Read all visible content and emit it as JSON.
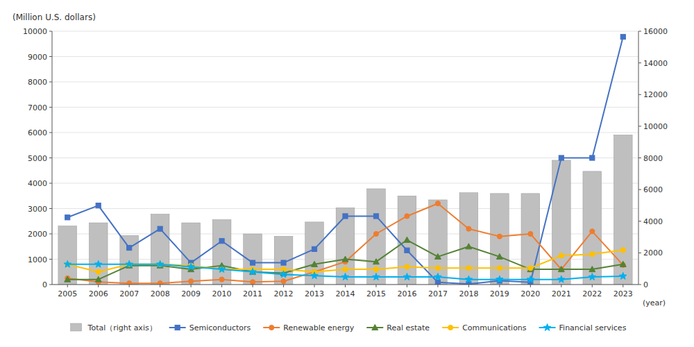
{
  "chart_data": {
    "type": "bar",
    "ylabel": "(Million U.S. dollars)",
    "xlabel": "(year)",
    "categories": [
      "2005",
      "2006",
      "2007",
      "2008",
      "2009",
      "2010",
      "2011",
      "2012",
      "2013",
      "2014",
      "2015",
      "2016",
      "2017",
      "2018",
      "2019",
      "2020",
      "2021",
      "2022",
      "2023"
    ],
    "series": [
      {
        "name": "Total（right axis）",
        "type": "bar",
        "axis": "y2",
        "color": "#bfbfbf",
        "values": [
          3700,
          3900,
          3100,
          4450,
          3900,
          4100,
          3200,
          3050,
          3950,
          4850,
          6050,
          5600,
          5350,
          5800,
          5750,
          5750,
          7850,
          7150,
          9450
        ]
      },
      {
        "name": "Semiconductors",
        "type": "line",
        "color": "#4472c4",
        "marker": "square",
        "values": [
          2650,
          3120,
          1450,
          2200,
          860,
          1720,
          860,
          860,
          1400,
          2700,
          2700,
          1350,
          87,
          19,
          150,
          87,
          5000,
          5000,
          9780
        ]
      },
      {
        "name": "Renewable energy",
        "type": "line",
        "color": "#ed7d31",
        "marker": "circle",
        "values": [
          250,
          100,
          50,
          50,
          130,
          200,
          100,
          130,
          500,
          900,
          2000,
          2700,
          3200,
          2200,
          1900,
          2000,
          600,
          2100,
          770
        ]
      },
      {
        "name": "Real estate",
        "type": "line",
        "color": "#548235",
        "marker": "triangle",
        "values": [
          200,
          200,
          750,
          750,
          600,
          750,
          500,
          450,
          800,
          1000,
          900,
          1760,
          1100,
          1500,
          1100,
          600,
          600,
          600,
          800
        ]
      },
      {
        "name": "Communications",
        "type": "line",
        "color": "#ffc000",
        "marker": "circle",
        "values": [
          800,
          500,
          800,
          800,
          750,
          600,
          600,
          600,
          500,
          600,
          600,
          700,
          650,
          650,
          650,
          650,
          1140,
          1200,
          1360
        ]
      },
      {
        "name": "Financial services",
        "type": "line",
        "color": "#00b0f0",
        "marker": "star",
        "values": [
          800,
          800,
          800,
          800,
          700,
          600,
          500,
          400,
          350,
          300,
          300,
          300,
          300,
          200,
          200,
          200,
          200,
          300,
          330
        ]
      }
    ],
    "ylim": [
      0,
      10000
    ],
    "yticks": [
      0,
      1000,
      2000,
      3000,
      4000,
      5000,
      6000,
      7000,
      8000,
      9000,
      10000
    ],
    "y2lim": [
      0,
      16000
    ],
    "y2ticks": [
      0,
      2000,
      4000,
      6000,
      8000,
      10000,
      12000,
      14000,
      16000
    ],
    "grid": true,
    "legend": "bottom"
  }
}
